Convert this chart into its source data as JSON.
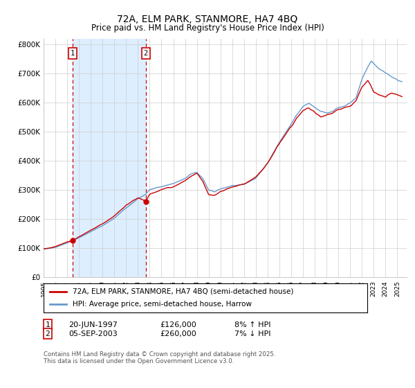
{
  "title": "72A, ELM PARK, STANMORE, HA7 4BQ",
  "subtitle": "Price paid vs. HM Land Registry's House Price Index (HPI)",
  "ylabel_ticks": [
    "£0",
    "£100K",
    "£200K",
    "£300K",
    "£400K",
    "£500K",
    "£600K",
    "£700K",
    "£800K"
  ],
  "ytick_values": [
    0,
    100000,
    200000,
    300000,
    400000,
    500000,
    600000,
    700000,
    800000
  ],
  "ylim": [
    0,
    820000
  ],
  "xlim_start": 1995.0,
  "xlim_end": 2025.8,
  "sale1_date": 1997.47,
  "sale1_price": 126000,
  "sale2_date": 2003.67,
  "sale2_price": 260000,
  "shade_color": "#ddeeff",
  "red_color": "#cc0000",
  "blue_color": "#6699cc",
  "grid_color": "#cccccc",
  "bg_color": "#ffffff",
  "legend_label_red": "72A, ELM PARK, STANMORE, HA7 4BQ (semi-detached house)",
  "legend_label_blue": "HPI: Average price, semi-detached house, Harrow",
  "footnote": "Contains HM Land Registry data © Crown copyright and database right 2025.\nThis data is licensed under the Open Government Licence v3.0."
}
